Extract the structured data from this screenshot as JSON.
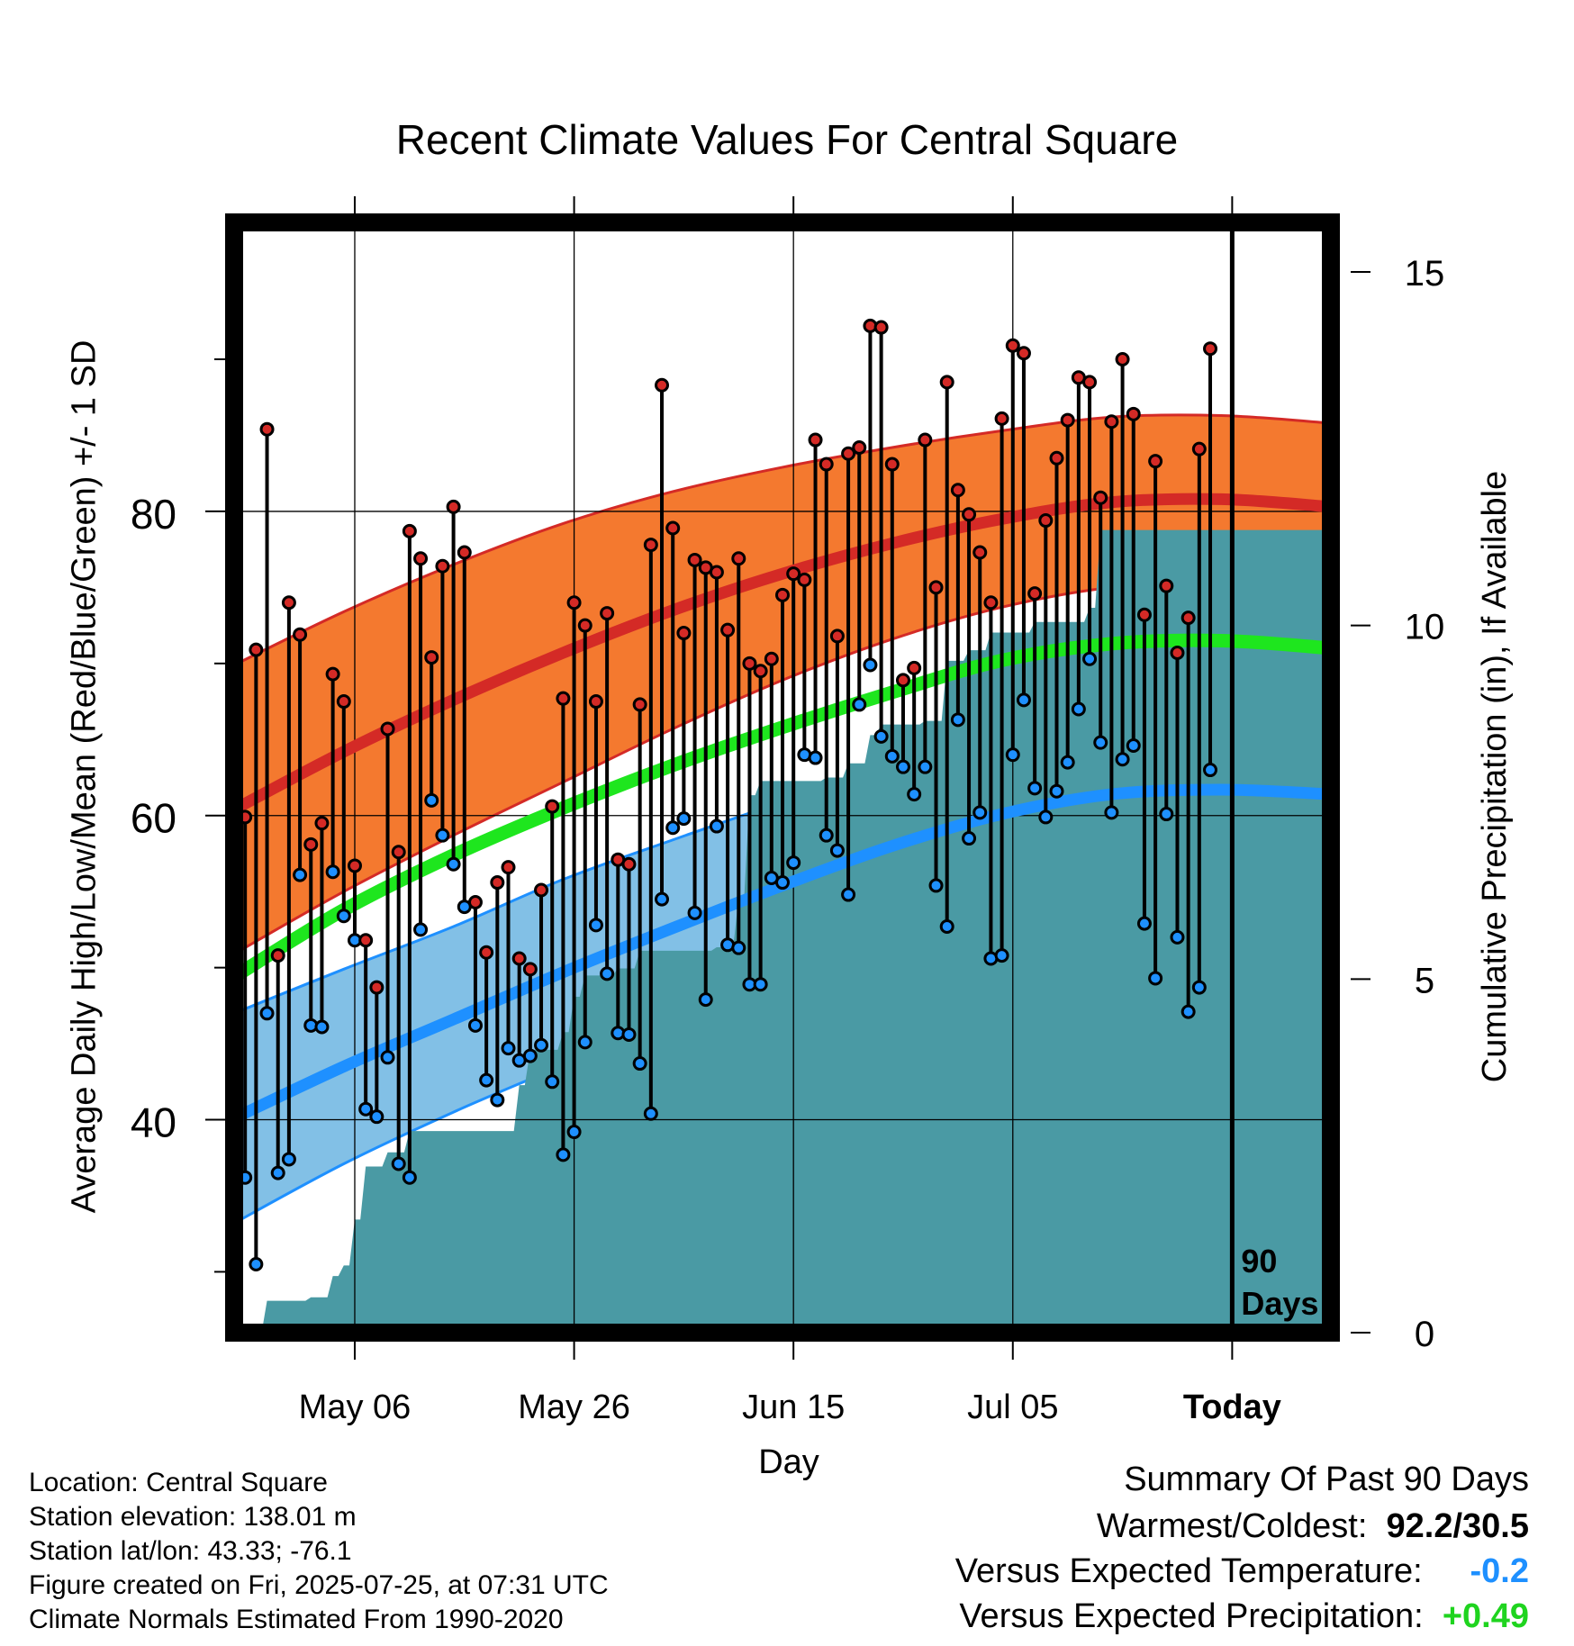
{
  "title": "Recent Climate Values For Central Square",
  "xlabel": "Day",
  "ylabel_left": "Average Daily High/Low/Mean (Red/Blue/Green) +/- 1 SD",
  "ylabel_right": "Cumulative Precipitation (in), If Available",
  "info": {
    "location": "Location: Central Square",
    "elevation": "Station elevation: 138.01 m",
    "latlon": "Station lat/lon: 43.33; -76.1",
    "created": "Figure created on Fri, 2025-07-25, at 07:31 UTC",
    "normals": "Climate Normals Estimated From 1990-2020"
  },
  "summary": {
    "heading": "Summary Of Past 90 Days",
    "warm_cold_label": "Warmest/Coldest:",
    "warm_cold_value": "92.2/30.5",
    "temp_label": "Versus Expected Temperature:",
    "temp_value": "-0.2",
    "precip_label": "Versus Expected Precipitation:",
    "precip_value": "+0.49"
  },
  "colors": {
    "high_band": "#f4792f",
    "high_line": "#d42a26",
    "low_band": "#82c0e6",
    "low_line": "#1e90ff",
    "mean_line": "#1ee61e",
    "precip": "#4a9aa4",
    "high_dot": "#d42a26",
    "low_dot": "#1e90ff"
  },
  "chart_data": {
    "type": "line",
    "x_start": "2025-04-25",
    "x_end": "2025-08-03",
    "today": "2025-07-25",
    "today_label": "Today",
    "period_label": [
      "90",
      "Days"
    ],
    "xticks": [
      {
        "date": "2025-05-06",
        "label": "May 06"
      },
      {
        "date": "2025-05-26",
        "label": "May 26"
      },
      {
        "date": "2025-06-15",
        "label": "Jun 15"
      },
      {
        "date": "2025-07-05",
        "label": "Jul 05"
      },
      {
        "date": "2025-07-25",
        "label": "Today"
      }
    ],
    "yleft": {
      "ylim": [
        26,
        99
      ],
      "ticks": [
        40,
        60,
        80
      ],
      "minor_ticks": [
        30,
        50,
        70,
        90
      ]
    },
    "yright": {
      "ylim": [
        0,
        15.7
      ],
      "ticks": [
        0,
        5,
        10,
        15
      ]
    },
    "normals": {
      "dates": [
        "2025-04-25",
        "2025-05-05",
        "2025-05-15",
        "2025-05-25",
        "2025-06-04",
        "2025-06-14",
        "2025-06-24",
        "2025-07-04",
        "2025-07-14",
        "2025-07-24",
        "2025-08-03"
      ],
      "high_mean": [
        60.4,
        64.2,
        67.6,
        70.7,
        73.5,
        75.9,
        77.9,
        79.5,
        80.6,
        80.8,
        80.3
      ],
      "high_sd": [
        9.5,
        9.2,
        8.9,
        8.5,
        7.8,
        7.0,
        6.3,
        5.8,
        5.6,
        5.5,
        5.5
      ],
      "low_mean": [
        40.1,
        43.5,
        46.6,
        49.7,
        52.6,
        55.4,
        58.0,
        60.1,
        61.4,
        61.7,
        61.4
      ],
      "low_sd": [
        6.9,
        6.4,
        6.1,
        6.1,
        5.8,
        5.5,
        5.2,
        5.4,
        5.5,
        5.6,
        5.6
      ],
      "mean": [
        49.4,
        53.8,
        57.4,
        60.5,
        63.3,
        65.8,
        68.1,
        70.2,
        71.3,
        71.5,
        71.0
      ]
    },
    "daily": {
      "start_date": "2025-04-25",
      "high": [
        61.1,
        59.9,
        70.9,
        85.4,
        50.8,
        74.0,
        71.9,
        58.1,
        59.5,
        69.3,
        67.5,
        56.7,
        51.8,
        48.7,
        65.7,
        57.6,
        78.7,
        76.9,
        70.4,
        76.4,
        80.3,
        77.3,
        54.3,
        51.0,
        55.6,
        56.6,
        50.6,
        49.9,
        55.1,
        60.6,
        67.7,
        74.0,
        72.5,
        67.5,
        73.3,
        57.1,
        56.8,
        67.3,
        77.8,
        88.3,
        78.9,
        72.0,
        76.8,
        76.3,
        76.0,
        72.2,
        76.9,
        70.0,
        69.5,
        70.3,
        74.5,
        75.9,
        75.5,
        84.7,
        83.1,
        71.8,
        83.8,
        84.2,
        92.2,
        92.1,
        83.1,
        68.9,
        69.7,
        84.7,
        75.0,
        88.5,
        81.4,
        79.8,
        77.3,
        74.0,
        86.1,
        90.9,
        90.4,
        74.6,
        79.4,
        83.5,
        86.0,
        88.8,
        88.5,
        80.9,
        85.9,
        90.0,
        86.4,
        73.2,
        83.3,
        75.1,
        70.7,
        73.0,
        84.1,
        90.7
      ],
      "low": [
        39.8,
        36.2,
        30.5,
        47.0,
        36.5,
        37.4,
        56.1,
        46.2,
        46.1,
        56.3,
        53.4,
        51.8,
        40.7,
        40.2,
        44.1,
        37.1,
        36.2,
        52.5,
        61.0,
        58.7,
        56.8,
        54.0,
        46.2,
        42.6,
        41.3,
        44.7,
        43.9,
        44.2,
        44.9,
        42.5,
        37.7,
        39.2,
        45.1,
        52.8,
        49.6,
        45.7,
        45.6,
        43.7,
        40.4,
        54.5,
        59.2,
        59.8,
        53.6,
        47.9,
        59.3,
        51.5,
        51.3,
        48.9,
        48.9,
        55.9,
        55.6,
        56.9,
        64.0,
        63.8,
        58.7,
        57.7,
        54.8,
        67.3,
        69.9,
        65.2,
        63.9,
        63.2,
        61.4,
        63.2,
        55.4,
        52.7,
        66.3,
        58.5,
        60.2,
        50.6,
        50.8,
        64.0,
        67.6,
        61.8,
        59.9,
        61.6,
        63.5,
        67.0,
        70.3,
        64.8,
        60.2,
        63.7,
        64.6,
        52.9,
        49.3,
        60.1,
        52.0,
        47.1,
        48.7,
        63.0
      ]
    },
    "precip": {
      "dates": [
        "2025-04-25",
        "2025-04-27",
        "2025-04-28",
        "2025-05-02",
        "2025-05-04",
        "2025-05-05",
        "2025-05-06",
        "2025-05-07",
        "2025-05-09",
        "2025-05-11",
        "2025-05-20",
        "2025-05-21",
        "2025-05-22",
        "2025-05-25",
        "2025-05-26",
        "2025-05-27",
        "2025-05-30",
        "2025-06-01",
        "2025-06-08",
        "2025-06-10",
        "2025-06-11",
        "2025-06-12",
        "2025-06-18",
        "2025-06-20",
        "2025-06-22",
        "2025-06-23",
        "2025-06-27",
        "2025-06-29",
        "2025-07-01",
        "2025-07-03",
        "2025-07-07",
        "2025-07-12",
        "2025-07-13",
        "2025-08-03"
      ],
      "values": [
        0.0,
        0.0,
        0.45,
        0.5,
        0.8,
        0.95,
        1.6,
        2.35,
        2.55,
        2.85,
        2.85,
        3.5,
        4.0,
        4.25,
        4.75,
        5.05,
        5.15,
        5.4,
        5.45,
        6.15,
        7.6,
        7.8,
        7.85,
        8.05,
        8.45,
        8.6,
        8.65,
        9.5,
        9.65,
        9.9,
        10.05,
        10.25,
        11.35,
        11.35
      ]
    }
  }
}
